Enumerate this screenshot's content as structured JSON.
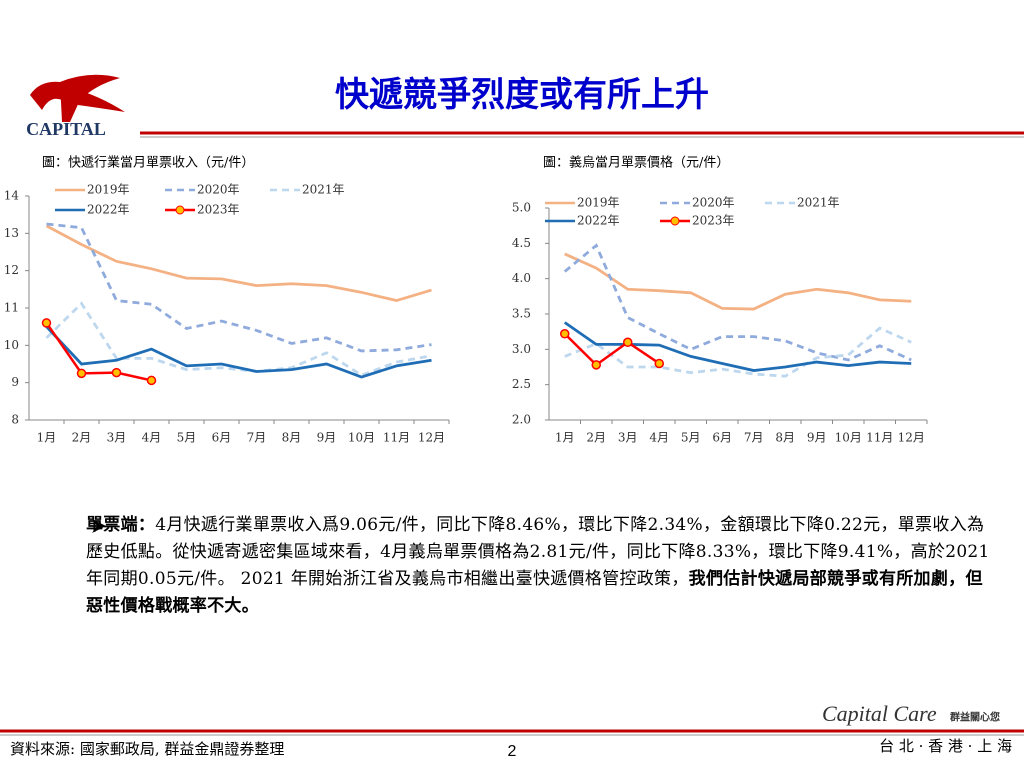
{
  "header": {
    "title": "快遞競爭烈度或有所上升",
    "logo": "CAPITAL"
  },
  "chart_data": [
    {
      "type": "line",
      "title": "圖：快遞行業當月單票收入（元/件）",
      "categories": [
        "1月",
        "2月",
        "3月",
        "4月",
        "5月",
        "6月",
        "7月",
        "8月",
        "9月",
        "10月",
        "11月",
        "12月"
      ],
      "ylim": [
        8,
        14
      ],
      "yticks": [
        8,
        9,
        10,
        11,
        12,
        13,
        14
      ],
      "series": [
        {
          "name": "2019年",
          "color": "#f4b183",
          "dash": false,
          "markers": false,
          "values": [
            13.2,
            12.7,
            12.25,
            12.05,
            11.8,
            11.78,
            11.6,
            11.65,
            11.6,
            11.42,
            11.2,
            11.48
          ]
        },
        {
          "name": "2020年",
          "color": "#8faadc",
          "dash": true,
          "markers": false,
          "values": [
            13.25,
            13.15,
            11.2,
            11.1,
            10.45,
            10.65,
            10.4,
            10.05,
            10.2,
            9.85,
            9.88,
            10.02
          ]
        },
        {
          "name": "2021年",
          "color": "#bdd7ee",
          "dash": true,
          "markers": false,
          "values": [
            10.2,
            11.12,
            9.65,
            9.65,
            9.35,
            9.4,
            9.3,
            9.4,
            9.8,
            9.2,
            9.55,
            9.72
          ]
        },
        {
          "name": "2022年",
          "color": "#1f6eb5",
          "dash": false,
          "markers": false,
          "values": [
            10.5,
            9.5,
            9.6,
            9.9,
            9.45,
            9.5,
            9.3,
            9.35,
            9.5,
            9.15,
            9.45,
            9.6
          ]
        },
        {
          "name": "2023年",
          "color": "#ff0000",
          "dash": false,
          "markers": true,
          "values": [
            10.6,
            9.25,
            9.27,
            9.06,
            null,
            null,
            null,
            null,
            null,
            null,
            null,
            null
          ]
        }
      ]
    },
    {
      "type": "line",
      "title": "圖：義烏當月單票價格（元/件）",
      "categories": [
        "1月",
        "2月",
        "3月",
        "4月",
        "5月",
        "6月",
        "7月",
        "8月",
        "9月",
        "10月",
        "11月",
        "12月"
      ],
      "ylim": [
        2,
        5
      ],
      "yticks": [
        {
          "value": 2,
          "label": "2.0"
        },
        {
          "value": 2.5,
          "label": "2.5"
        },
        {
          "value": 3,
          "label": "3.0"
        },
        {
          "value": 3.5,
          "label": "3.5"
        },
        {
          "value": 4,
          "label": "4.0"
        },
        {
          "value": 4.5,
          "label": "4.5"
        },
        {
          "value": 5,
          "label": "5.0"
        }
      ],
      "series": [
        {
          "name": "2019年",
          "color": "#f4b183",
          "dash": false,
          "markers": false,
          "values": [
            4.35,
            4.15,
            3.85,
            3.83,
            3.8,
            3.58,
            3.57,
            3.78,
            3.85,
            3.8,
            3.7,
            3.68
          ]
        },
        {
          "name": "2020年",
          "color": "#8faadc",
          "dash": true,
          "markers": false,
          "values": [
            4.1,
            4.47,
            3.45,
            3.22,
            3.0,
            3.18,
            3.18,
            3.12,
            2.95,
            2.85,
            3.05,
            2.85
          ]
        },
        {
          "name": "2021年",
          "color": "#bdd7ee",
          "dash": true,
          "markers": false,
          "values": [
            2.9,
            3.08,
            2.75,
            2.75,
            2.67,
            2.72,
            2.65,
            2.62,
            2.88,
            2.92,
            3.3,
            3.1
          ]
        },
        {
          "name": "2022年",
          "color": "#1f6eb5",
          "dash": false,
          "markers": false,
          "values": [
            3.38,
            3.07,
            3.07,
            3.06,
            2.9,
            2.8,
            2.7,
            2.75,
            2.82,
            2.77,
            2.82,
            2.8
          ]
        },
        {
          "name": "2023年",
          "color": "#ff0000",
          "dash": false,
          "markers": true,
          "values": [
            3.22,
            2.78,
            3.1,
            2.8,
            null,
            null,
            null,
            null,
            null,
            null,
            null,
            null
          ]
        }
      ]
    }
  ],
  "text_block": {
    "segments": [
      {
        "text": "單票端：",
        "bold": true
      },
      {
        "text": "4月快遞行業單票收入爲9.06元/件，同比下降8.46%，環比下降2.34%，金額環比下降0.22元，單票收入為歷史低點。從快遞寄遞密集區域來看，4月義烏單票價格為2.81元/件，同比下降8.33%，環比下降9.41%，高於2021年同期0.05元/件。 2021 年開始浙江省及義烏市相繼出臺快遞價格管控政策，",
        "bold": false
      },
      {
        "text": "我們估計快遞局部競爭或有所加劇，但惡性價格戰概率不大。",
        "bold": true
      }
    ]
  },
  "footer": {
    "source": "資料來源: 國家郵政局, 群益金鼎證券整理",
    "page": "2",
    "brand": "Capital Care",
    "slogan": "群益關心您",
    "cities": "台 北 · 香 港 · 上 海"
  }
}
